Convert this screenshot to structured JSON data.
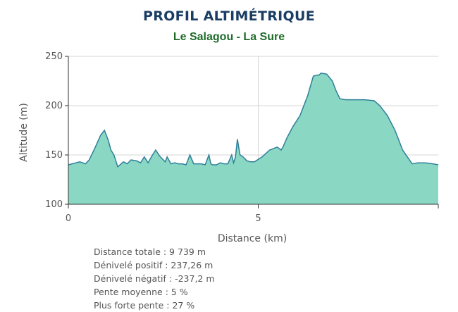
{
  "header": {
    "title": "PROFIL ALTIMÉTRIQUE",
    "subtitle": "Le Salagou - La Sure"
  },
  "chart_data": {
    "type": "area",
    "xlabel": "Distance (km)",
    "ylabel": "Altitude (m)",
    "xlim": [
      0,
      9.739
    ],
    "ylim": [
      100,
      250
    ],
    "xticks": [
      0,
      5
    ],
    "yticks": [
      100,
      150,
      200,
      250
    ],
    "grid": true,
    "fill_color": "#8ad8c3",
    "line_color": "#2f7f9a",
    "x": [
      0,
      0.2,
      0.3,
      0.45,
      0.55,
      0.7,
      0.85,
      0.95,
      1.05,
      1.12,
      1.2,
      1.3,
      1.45,
      1.55,
      1.65,
      1.8,
      1.9,
      2.0,
      2.1,
      2.2,
      2.3,
      2.4,
      2.55,
      2.6,
      2.7,
      2.8,
      2.9,
      3.0,
      3.1,
      3.2,
      3.3,
      3.4,
      3.5,
      3.6,
      3.7,
      3.75,
      3.8,
      3.9,
      4.0,
      4.1,
      4.2,
      4.3,
      4.35,
      4.4,
      4.45,
      4.52,
      4.6,
      4.7,
      4.8,
      4.9,
      5.1,
      5.3,
      5.5,
      5.6,
      5.65,
      5.75,
      5.9,
      6.1,
      6.3,
      6.45,
      6.55,
      6.6,
      6.65,
      6.8,
      6.95,
      7.05,
      7.15,
      7.3,
      7.5,
      7.8,
      8.05,
      8.2,
      8.4,
      8.6,
      8.8,
      9.05,
      9.2,
      9.4,
      9.6,
      9.739
    ],
    "values": [
      140,
      142,
      143,
      141,
      145,
      157,
      170,
      175,
      165,
      155,
      150,
      138,
      143,
      141,
      145,
      144,
      142,
      148,
      142,
      149,
      155,
      149,
      143,
      148,
      141,
      142,
      141,
      141,
      140,
      150,
      141,
      141,
      141,
      140,
      150,
      141,
      140,
      140,
      142,
      141,
      141,
      150,
      142,
      148,
      166,
      150,
      148,
      144,
      143,
      143,
      148,
      155,
      158,
      155,
      158,
      167,
      178,
      190,
      210,
      230,
      231,
      231,
      233,
      232,
      225,
      215,
      207,
      206,
      206,
      206,
      205,
      200,
      190,
      175,
      155,
      141,
      142,
      142,
      141,
      140
    ]
  },
  "stats": [
    "Distance totale : 9 739 m",
    "Dénivelé positif : 237,26 m",
    "Dénivelé négatif : -237,2 m",
    "Pente moyenne : 5 %",
    "Plus forte pente : 27 %"
  ]
}
